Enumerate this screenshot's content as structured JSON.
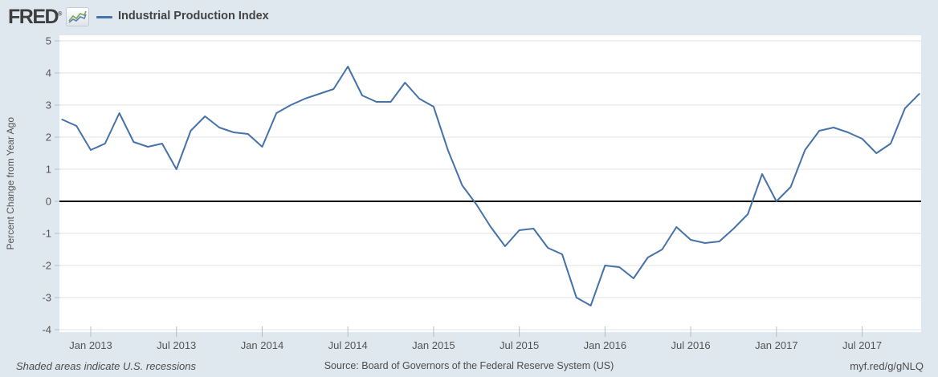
{
  "header": {
    "logo_text": "FRED",
    "registered_mark": "®",
    "series_label": "Industrial Production Index"
  },
  "footer": {
    "recession_note": "Shaded areas indicate U.S. recessions",
    "source": "Source: Board of Governors of the Federal Reserve System (US)",
    "short_url": "myf.red/g/gNLQ"
  },
  "colors": {
    "background": "#dfe8ef",
    "plot_background": "#ffffff",
    "line": "#4572a7",
    "grid": "#e0e0e0",
    "zero_line": "#000000",
    "tick_mark": "#b0bfcc",
    "axis_text": "#555555"
  },
  "chart_data": {
    "type": "line",
    "title": "Industrial Production Index",
    "ylabel": "Percent Change from Year Ago",
    "xlabel": "",
    "units": "percent",
    "frequency": "monthly",
    "grid": true,
    "legend_position": "top-left",
    "ylim": [
      -4,
      5
    ],
    "y_ticks": [
      5,
      4,
      3,
      2,
      1,
      0,
      -1,
      -2,
      -3,
      -4
    ],
    "x_tick_labels": [
      "Jan 2013",
      "Jul 2013",
      "Jan 2014",
      "Jul 2014",
      "Jan 2015",
      "Jul 2015",
      "Jan 2016",
      "Jul 2016",
      "Jan 2017",
      "Jul 2017"
    ],
    "x_tick_month_indices": [
      2,
      8,
      14,
      20,
      26,
      32,
      38,
      44,
      50,
      56
    ],
    "x": [
      "2012-11",
      "2012-12",
      "2013-01",
      "2013-02",
      "2013-03",
      "2013-04",
      "2013-05",
      "2013-06",
      "2013-07",
      "2013-08",
      "2013-09",
      "2013-10",
      "2013-11",
      "2013-12",
      "2014-01",
      "2014-02",
      "2014-03",
      "2014-04",
      "2014-05",
      "2014-06",
      "2014-07",
      "2014-08",
      "2014-09",
      "2014-10",
      "2014-11",
      "2014-12",
      "2015-01",
      "2015-02",
      "2015-03",
      "2015-04",
      "2015-05",
      "2015-06",
      "2015-07",
      "2015-08",
      "2015-09",
      "2015-10",
      "2015-11",
      "2015-12",
      "2016-01",
      "2016-02",
      "2016-03",
      "2016-04",
      "2016-05",
      "2016-06",
      "2016-07",
      "2016-08",
      "2016-09",
      "2016-10",
      "2016-11",
      "2016-12",
      "2017-01",
      "2017-02",
      "2017-03",
      "2017-04",
      "2017-05",
      "2017-06",
      "2017-07",
      "2017-08",
      "2017-09",
      "2017-10",
      "2017-11"
    ],
    "values": [
      2.55,
      2.35,
      1.6,
      1.8,
      2.75,
      1.85,
      1.7,
      1.8,
      1.0,
      2.2,
      2.65,
      2.3,
      2.15,
      2.1,
      1.7,
      2.75,
      3.0,
      3.2,
      3.35,
      3.5,
      4.2,
      3.3,
      3.1,
      3.1,
      3.7,
      3.2,
      2.95,
      1.6,
      0.5,
      -0.1,
      -0.8,
      -1.4,
      -0.9,
      -0.85,
      -1.45,
      -1.65,
      -3.0,
      -3.25,
      -2.0,
      -2.05,
      -2.4,
      -1.75,
      -1.5,
      -0.8,
      -1.2,
      -1.3,
      -1.25,
      -0.85,
      -0.4,
      0.85,
      0.0,
      0.45,
      1.6,
      2.2,
      2.3,
      2.15,
      1.95,
      1.5,
      1.8,
      2.9,
      3.35
    ]
  }
}
